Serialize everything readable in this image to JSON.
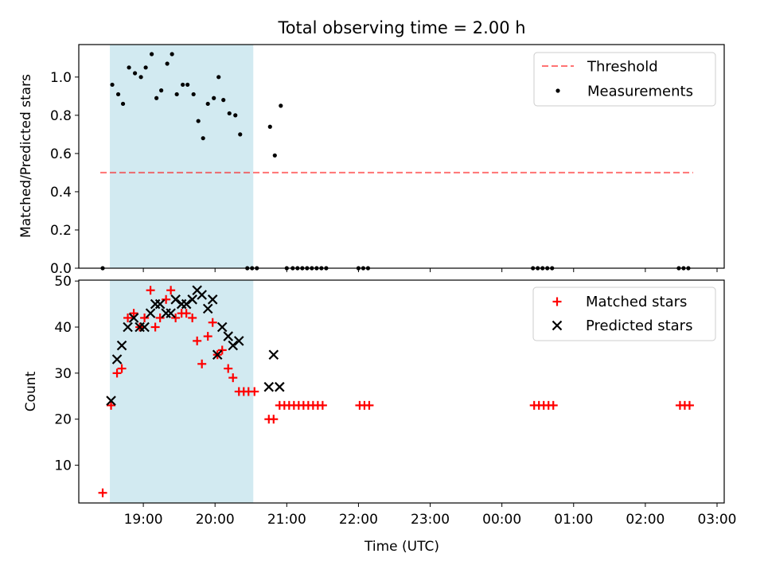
{
  "title": "Total observing time = 2.00 h",
  "xlabel": "Time (UTC)",
  "colors": {
    "span": "#add8e6",
    "threshold": "#ff0000",
    "measurement": "#000000",
    "matched": "#ff0000",
    "predicted": "#000000"
  },
  "chart_data": [
    {
      "type": "scatter",
      "ylabel": "Matched/Predicted stars",
      "xlim": [
        "18:06",
        "03:06"
      ],
      "ylim": [
        0,
        1.17
      ],
      "yticks": [
        "0.0",
        "0.2",
        "0.4",
        "0.6",
        "0.8",
        "1.0"
      ],
      "xticks_labeled": false,
      "observing_span": [
        "18:32",
        "20:32"
      ],
      "legend": {
        "position": "upper right",
        "entries": [
          "Threshold",
          "Measurements"
        ]
      },
      "threshold": {
        "name": "Threshold",
        "y": 0.5,
        "x_range": [
          "18:24",
          "02:40"
        ],
        "style": "dashed"
      },
      "series": [
        {
          "name": "Measurements",
          "marker": "dot",
          "points": [
            [
              "18:26",
              0.0
            ],
            [
              "18:34",
              0.96
            ],
            [
              "18:39",
              0.91
            ],
            [
              "18:43",
              0.86
            ],
            [
              "18:48",
              1.05
            ],
            [
              "18:53",
              1.02
            ],
            [
              "18:58",
              1.0
            ],
            [
              "19:02",
              1.05
            ],
            [
              "19:07",
              1.12
            ],
            [
              "19:11",
              0.89
            ],
            [
              "19:15",
              0.93
            ],
            [
              "19:20",
              1.07
            ],
            [
              "19:24",
              1.12
            ],
            [
              "19:28",
              0.91
            ],
            [
              "19:33",
              0.96
            ],
            [
              "19:37",
              0.96
            ],
            [
              "19:42",
              0.91
            ],
            [
              "19:46",
              0.77
            ],
            [
              "19:50",
              0.68
            ],
            [
              "19:54",
              0.86
            ],
            [
              "19:59",
              0.89
            ],
            [
              "20:03",
              1.0
            ],
            [
              "20:07",
              0.88
            ],
            [
              "20:12",
              0.81
            ],
            [
              "20:17",
              0.8
            ],
            [
              "20:21",
              0.7
            ],
            [
              "20:27",
              0.0
            ],
            [
              "20:31",
              0.0
            ],
            [
              "20:35",
              0.0
            ],
            [
              "20:46",
              0.74
            ],
            [
              "20:50",
              0.59
            ],
            [
              "20:55",
              0.85
            ],
            [
              "21:00",
              0.0
            ],
            [
              "21:05",
              0.0
            ],
            [
              "21:09",
              0.0
            ],
            [
              "21:13",
              0.0
            ],
            [
              "21:17",
              0.0
            ],
            [
              "21:21",
              0.0
            ],
            [
              "21:25",
              0.0
            ],
            [
              "21:29",
              0.0
            ],
            [
              "21:33",
              0.0
            ],
            [
              "22:00",
              0.0
            ],
            [
              "22:04",
              0.0
            ],
            [
              "22:08",
              0.0
            ],
            [
              "00:26",
              0.0
            ],
            [
              "00:30",
              0.0
            ],
            [
              "00:34",
              0.0
            ],
            [
              "00:38",
              0.0
            ],
            [
              "00:42",
              0.0
            ],
            [
              "02:28",
              0.0
            ],
            [
              "02:32",
              0.0
            ],
            [
              "02:36",
              0.0
            ]
          ]
        }
      ]
    },
    {
      "type": "scatter",
      "ylabel": "Count",
      "xlim": [
        "18:06",
        "03:06"
      ],
      "ylim": [
        1.8,
        50.2
      ],
      "yticks": [
        "10",
        "20",
        "30",
        "40",
        "50"
      ],
      "xticks": [
        "19:00",
        "20:00",
        "21:00",
        "22:00",
        "23:00",
        "00:00",
        "01:00",
        "02:00",
        "03:00"
      ],
      "observing_span": [
        "18:32",
        "20:32"
      ],
      "legend": {
        "position": "upper right",
        "entries": [
          "Matched stars",
          "Predicted stars"
        ]
      },
      "series": [
        {
          "name": "Matched stars",
          "marker": "plus",
          "points": [
            [
              "18:26",
              4
            ],
            [
              "18:33",
              23
            ],
            [
              "18:38",
              30
            ],
            [
              "18:42",
              31
            ],
            [
              "18:47",
              42
            ],
            [
              "18:52",
              43
            ],
            [
              "18:57",
              40
            ],
            [
              "19:01",
              42
            ],
            [
              "19:06",
              48
            ],
            [
              "19:10",
              40
            ],
            [
              "19:14",
              42
            ],
            [
              "19:19",
              46
            ],
            [
              "19:23",
              48
            ],
            [
              "19:27",
              42
            ],
            [
              "19:32",
              43
            ],
            [
              "19:36",
              43
            ],
            [
              "19:41",
              42
            ],
            [
              "19:45",
              37
            ],
            [
              "19:49",
              32
            ],
            [
              "19:54",
              38
            ],
            [
              "19:58",
              41
            ],
            [
              "20:02",
              34
            ],
            [
              "20:06",
              35
            ],
            [
              "20:11",
              31
            ],
            [
              "20:15",
              29
            ],
            [
              "20:20",
              26
            ],
            [
              "20:24",
              26
            ],
            [
              "20:28",
              26
            ],
            [
              "20:33",
              26
            ],
            [
              "20:45",
              20
            ],
            [
              "20:49",
              20
            ],
            [
              "20:54",
              23
            ],
            [
              "20:58",
              23
            ],
            [
              "21:02",
              23
            ],
            [
              "21:06",
              23
            ],
            [
              "21:10",
              23
            ],
            [
              "21:14",
              23
            ],
            [
              "21:18",
              23
            ],
            [
              "21:22",
              23
            ],
            [
              "21:26",
              23
            ],
            [
              "21:30",
              23
            ],
            [
              "22:01",
              23
            ],
            [
              "22:05",
              23
            ],
            [
              "22:09",
              23
            ],
            [
              "00:27",
              23
            ],
            [
              "00:31",
              23
            ],
            [
              "00:35",
              23
            ],
            [
              "00:39",
              23
            ],
            [
              "00:43",
              23
            ],
            [
              "02:29",
              23
            ],
            [
              "02:33",
              23
            ],
            [
              "02:37",
              23
            ]
          ]
        },
        {
          "name": "Predicted stars",
          "marker": "x",
          "points": [
            [
              "18:33",
              24
            ],
            [
              "18:38",
              33
            ],
            [
              "18:42",
              36
            ],
            [
              "18:47",
              40
            ],
            [
              "18:52",
              42
            ],
            [
              "18:57",
              40
            ],
            [
              "19:01",
              40
            ],
            [
              "19:06",
              43
            ],
            [
              "19:10",
              45
            ],
            [
              "19:14",
              45
            ],
            [
              "19:19",
              43
            ],
            [
              "19:23",
              43
            ],
            [
              "19:27",
              46
            ],
            [
              "19:32",
              45
            ],
            [
              "19:36",
              45
            ],
            [
              "19:41",
              46
            ],
            [
              "19:45",
              48
            ],
            [
              "19:49",
              47
            ],
            [
              "19:54",
              44
            ],
            [
              "19:58",
              46
            ],
            [
              "20:02",
              34
            ],
            [
              "20:06",
              40
            ],
            [
              "20:11",
              38
            ],
            [
              "20:15",
              36
            ],
            [
              "20:20",
              37
            ],
            [
              "20:45",
              27
            ],
            [
              "20:49",
              34
            ],
            [
              "20:54",
              27
            ]
          ]
        }
      ]
    }
  ]
}
